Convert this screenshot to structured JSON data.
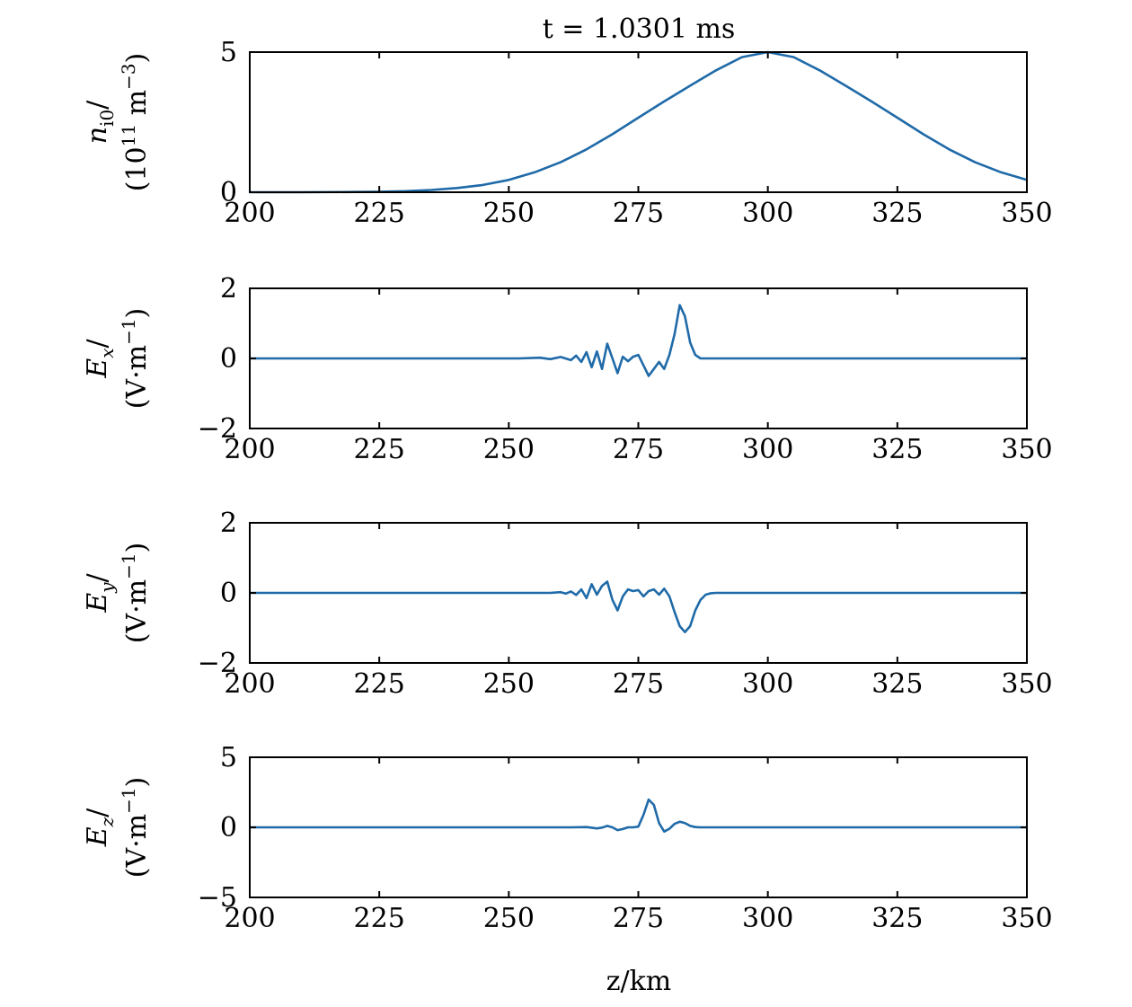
{
  "figure": {
    "title": "t = 1.0301 ms",
    "xlabel": "z/km",
    "line_color": "#1f6aa8"
  },
  "chart_data": [
    {
      "type": "line",
      "ylabel": [
        "n_i0/",
        "(10^11 m^-3)"
      ],
      "xlim": [
        200,
        350
      ],
      "ylim": [
        0,
        5
      ],
      "xticks": [
        "200",
        "225",
        "250",
        "275",
        "300",
        "325",
        "350"
      ],
      "yticks": [
        {
          "value": 0,
          "label": "0"
        },
        {
          "value": 5,
          "label": "5"
        }
      ],
      "series": [
        {
          "x": [
            200,
            210,
            220,
            225,
            230,
            235,
            240,
            245,
            250,
            255,
            260,
            265,
            270,
            275,
            280,
            285,
            290,
            295,
            300,
            305,
            310,
            315,
            320,
            325,
            330,
            335,
            340,
            345,
            350
          ],
          "y": [
            0.0,
            0.0,
            0.01,
            0.02,
            0.04,
            0.08,
            0.15,
            0.26,
            0.44,
            0.71,
            1.07,
            1.53,
            2.07,
            2.66,
            3.24,
            3.8,
            4.35,
            4.82,
            5.0,
            4.82,
            4.35,
            3.8,
            3.24,
            2.66,
            2.07,
            1.53,
            1.07,
            0.71,
            0.44
          ]
        }
      ]
    },
    {
      "type": "line",
      "ylabel": [
        "E_x/",
        "(V·m^-1)"
      ],
      "xlim": [
        200,
        350
      ],
      "ylim": [
        -2,
        2
      ],
      "xticks": [
        "200",
        "225",
        "250",
        "275",
        "300",
        "325",
        "350"
      ],
      "yticks": [
        {
          "value": -2,
          "label": "−2"
        },
        {
          "value": 0,
          "label": "0"
        },
        {
          "value": 2,
          "label": "2"
        }
      ],
      "series": [
        {
          "x": [
            200,
            252,
            256,
            258,
            260,
            262,
            263,
            264,
            265,
            266,
            267,
            268,
            269,
            270,
            271,
            272,
            273,
            274,
            275,
            276,
            277,
            278,
            279,
            280,
            281,
            282,
            283,
            284,
            285,
            286,
            287,
            288,
            290,
            350
          ],
          "y": [
            0,
            0,
            0.02,
            -0.02,
            0.04,
            -0.05,
            0.08,
            -0.1,
            0.18,
            -0.25,
            0.2,
            -0.3,
            0.42,
            0.0,
            -0.42,
            0.05,
            -0.08,
            0.05,
            0.1,
            -0.2,
            -0.5,
            -0.3,
            -0.1,
            -0.3,
            0.1,
            0.7,
            1.52,
            1.2,
            0.45,
            0.1,
            0.0,
            0.0,
            0,
            0
          ]
        }
      ]
    },
    {
      "type": "line",
      "ylabel": [
        "E_y/",
        "(V·m^-1)"
      ],
      "xlim": [
        200,
        350
      ],
      "ylim": [
        -2,
        2
      ],
      "xticks": [
        "200",
        "225",
        "250",
        "275",
        "300",
        "325",
        "350"
      ],
      "yticks": [
        {
          "value": -2,
          "label": "−2"
        },
        {
          "value": 0,
          "label": "0"
        },
        {
          "value": 2,
          "label": "2"
        }
      ],
      "series": [
        {
          "x": [
            200,
            258,
            260,
            261,
            262,
            263,
            264,
            265,
            266,
            267,
            268,
            269,
            270,
            271,
            272,
            273,
            274,
            275,
            276,
            277,
            278,
            279,
            280,
            281,
            282,
            283,
            284,
            285,
            286,
            287,
            288,
            289,
            290,
            350
          ],
          "y": [
            0,
            0,
            0.02,
            -0.02,
            0.04,
            -0.06,
            0.1,
            -0.15,
            0.25,
            -0.05,
            0.2,
            0.32,
            -0.2,
            -0.5,
            -0.1,
            0.1,
            0.05,
            0.08,
            -0.1,
            0.05,
            0.1,
            -0.05,
            0.12,
            -0.1,
            -0.55,
            -0.95,
            -1.12,
            -0.95,
            -0.5,
            -0.2,
            -0.05,
            -0.01,
            0,
            0
          ]
        }
      ]
    },
    {
      "type": "line",
      "ylabel": [
        "E_z/",
        "(V·m^-1)"
      ],
      "xlim": [
        200,
        350
      ],
      "ylim": [
        -5,
        5
      ],
      "xticks": [
        "200",
        "225",
        "250",
        "275",
        "300",
        "325",
        "350"
      ],
      "yticks": [
        {
          "value": -5,
          "label": "−5"
        },
        {
          "value": 0,
          "label": "0"
        },
        {
          "value": 5,
          "label": "5"
        }
      ],
      "series": [
        {
          "x": [
            200,
            262,
            265,
            267,
            268,
            269,
            270,
            271,
            272,
            273,
            274,
            275,
            276,
            277,
            278,
            279,
            280,
            281,
            282,
            283,
            284,
            285,
            286,
            287,
            288,
            350
          ],
          "y": [
            0,
            0,
            0.02,
            -0.08,
            -0.02,
            0.1,
            0.0,
            -0.2,
            -0.12,
            0.0,
            0.0,
            0.05,
            0.9,
            1.98,
            1.6,
            0.3,
            -0.3,
            -0.1,
            0.25,
            0.4,
            0.3,
            0.1,
            0.02,
            0.0,
            0.0,
            0
          ]
        }
      ]
    }
  ]
}
